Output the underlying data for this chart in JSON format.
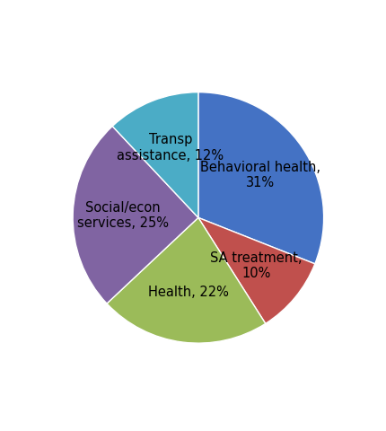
{
  "labels": [
    "Behavioral health,\n31%",
    "SA treatment,\n10%",
    "Health, 22%",
    "Social/econ\nservices, 25%",
    "Transp\nassistance, 12%"
  ],
  "values": [
    31,
    10,
    22,
    25,
    12
  ],
  "colors": [
    "#4472C4",
    "#C0504D",
    "#9BBB59",
    "#8064A2",
    "#4BACC6"
  ],
  "startangle": 90,
  "figsize": [
    4.31,
    4.8
  ],
  "dpi": 100,
  "background_color": "#FFFFFF",
  "text_color": "#000000",
  "label_fontsize": 10.5
}
